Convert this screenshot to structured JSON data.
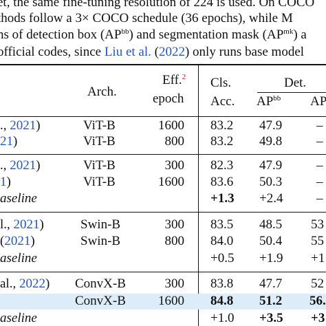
{
  "caption": {
    "line1": "et, the same fine-tuning resolution of 224 is used. On COCO",
    "line2_prefix": "thods follow a 3",
    "line2_times": "×",
    "line2_suffix": " COCO schedule (36 epochs), while M",
    "line3_prefix": "ns of detection box (AP",
    "line3_sup1": "bb",
    "line3_mid": ") and segmentation mask (AP",
    "line3_sup2": "mk",
    "line3_suffix": ") a",
    "line4_prefix": "official codes, since ",
    "line4_cite_author": "Liu et al.",
    "line4_cite_open": " (",
    "line4_cite_year": "2022",
    "line4_cite_close": ")",
    "line4_suffix": " only runs base model"
  },
  "header": {
    "arch": "Arch.",
    "eff_line1": "Eff.",
    "eff_footnote": "2",
    "eff_line2": "epoch",
    "cls_line1": "Cls.",
    "cls_line2": "Acc.",
    "det_group": "Det.",
    "ap_bb": "AP",
    "ap_bb_sup": "bb",
    "ap_mk_partial": "AP"
  },
  "rows": [
    {
      "ref_a": "., ",
      "ref_year": "2021",
      "ref_b": ")",
      "arch": "ViT-B",
      "epoch": "1600",
      "acc": "83.2",
      "apbb": "47.9",
      "apmk": "–"
    },
    {
      "ref_a": "",
      "ref_year": "21",
      "ref_b": ")",
      "arch": "ViT-B",
      "epoch": "800",
      "acc": "83.2",
      "apbb": "49.8",
      "apmk": "–"
    },
    {
      "ref_a": "., ",
      "ref_year": "2021",
      "ref_b": ")",
      "arch": "ViT-B",
      "epoch": "300",
      "acc": "82.3",
      "apbb": "47.9",
      "apmk": "–"
    },
    {
      "ref_a": "",
      "ref_year": "1",
      "ref_b": ")",
      "arch": "ViT-B",
      "epoch": "1600",
      "acc": "83.6",
      "apbb": "50.3",
      "apmk": "–"
    },
    {
      "baseline": "aseline",
      "acc": "+1.3",
      "apbb": "+2.4",
      "apmk": "–"
    },
    {
      "ref_a": "l., ",
      "ref_year": "2021",
      "ref_b": ")",
      "arch": "Swin-B",
      "epoch": "300",
      "acc": "83.5",
      "apbb": "48.5",
      "apmk": "53"
    },
    {
      "ref_a": "(",
      "ref_year": "2021",
      "ref_b": ")",
      "arch": "Swin-B",
      "epoch": "800",
      "acc": "84.0",
      "apbb": "50.4",
      "apmk": "55"
    },
    {
      "baseline": "aseline",
      "acc": "+0.5",
      "apbb": "+1.9",
      "apmk": "+1"
    },
    {
      "ref_a": "al., ",
      "ref_year": "2022",
      "ref_b": ")",
      "arch": "ConvX-B",
      "epoch": "300",
      "acc": "83.8",
      "apbb": "47.7",
      "apmk": "52"
    },
    {
      "arch": "ConvX-B",
      "epoch": "1600",
      "acc": "84.8",
      "apbb": "51.2",
      "apmk": "56."
    },
    {
      "baseline": "aseline",
      "acc": "+1.0",
      "apbb": "+3.5",
      "apmk": "+3"
    }
  ],
  "colors": {
    "link": "#2255c4",
    "footnote": "#d21a1a",
    "highlight": "#dcecf8"
  }
}
